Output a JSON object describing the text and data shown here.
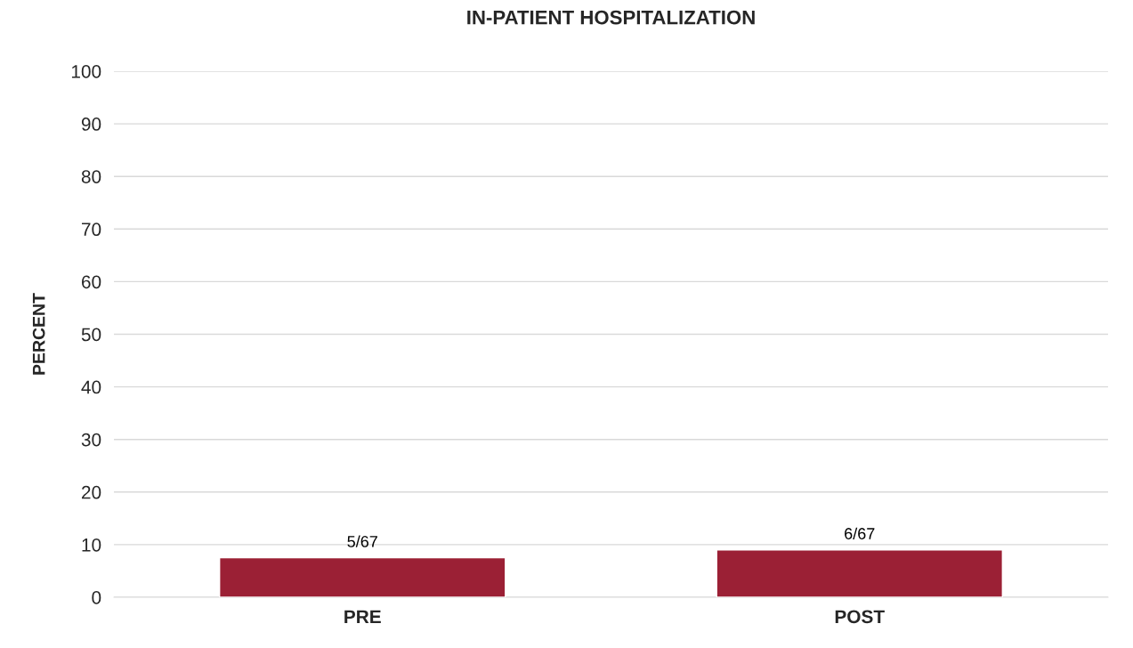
{
  "chart_data": {
    "type": "bar",
    "title": "IN-PATIENT HOSPITALIZATION",
    "ylabel": "PERCENT",
    "categories": [
      "PRE",
      "POST"
    ],
    "values": [
      7.5,
      9.0
    ],
    "color": "#9b2035",
    "value_labels": [
      "5/67",
      "6/67"
    ],
    "ylim": [
      0,
      100
    ],
    "yticks": [
      0,
      10,
      20,
      30,
      40,
      50,
      60,
      70,
      80,
      90,
      100
    ],
    "grid": "y",
    "legend": false
  }
}
